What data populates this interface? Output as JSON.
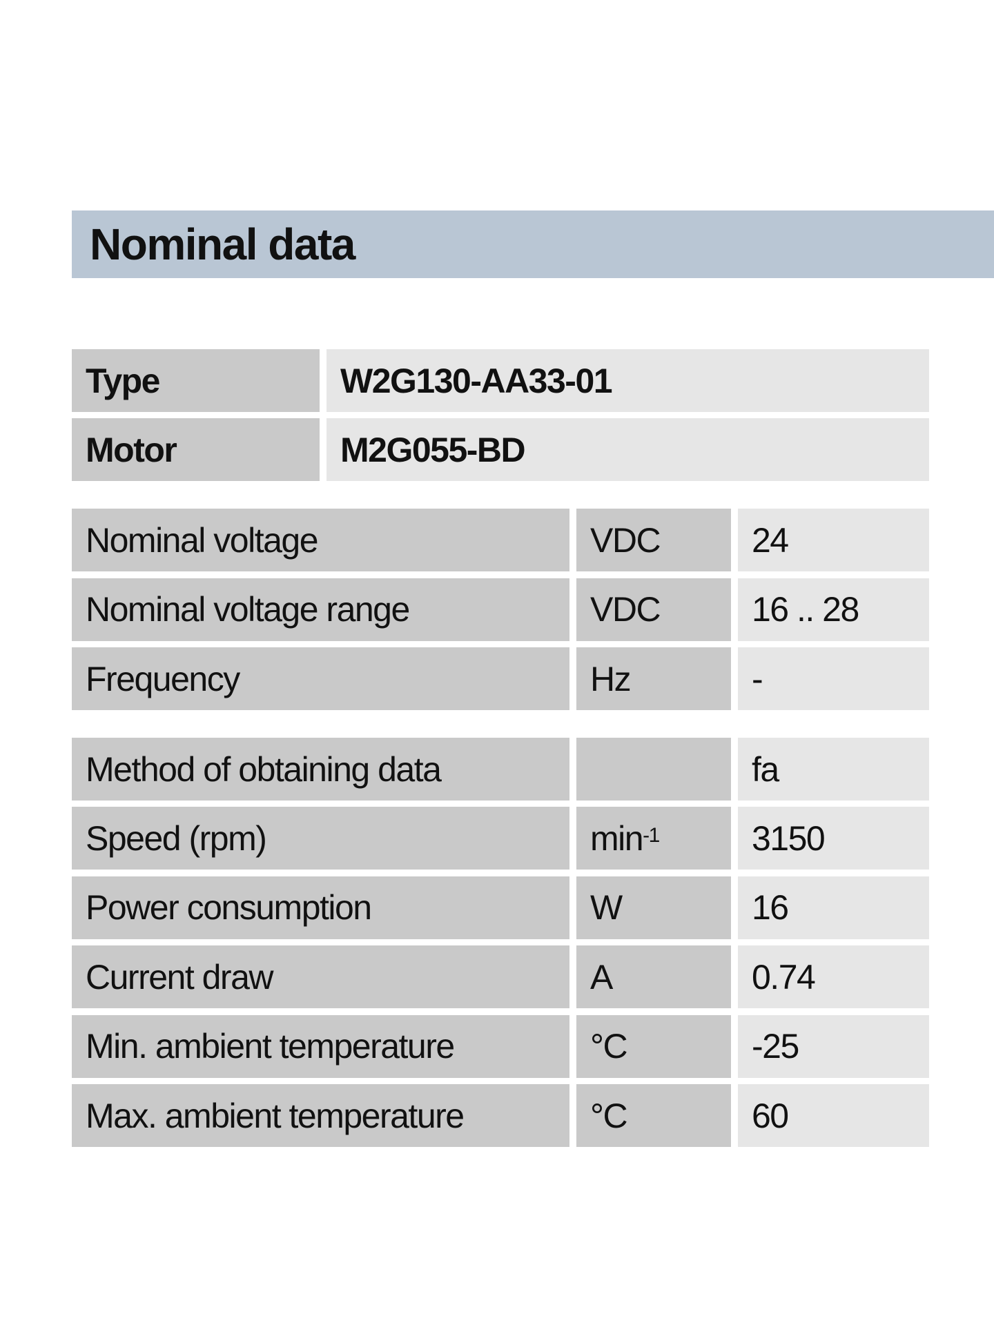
{
  "header": {
    "title": "Nominal data"
  },
  "identity": {
    "rows": [
      [
        "Type",
        "W2G130-AA33-01"
      ],
      [
        "Motor",
        "M2G055-BD"
      ]
    ]
  },
  "electrical": {
    "rows": [
      [
        "Nominal voltage",
        "VDC",
        24
      ],
      [
        "Nominal voltage range",
        "VDC",
        "16 .. 28"
      ],
      [
        "Frequency",
        "Hz",
        "-"
      ]
    ]
  },
  "performance": {
    "rows": [
      [
        "Method of obtaining data",
        null,
        "fa"
      ],
      [
        "Speed (rpm)",
        {
          "text": "min",
          "sup": "-1"
        },
        3150
      ],
      [
        "Power consumption",
        "W",
        16
      ],
      [
        "Current draw",
        "A",
        0.74
      ],
      [
        "Min. ambient temperature",
        "°C",
        -25
      ],
      [
        "Max. ambient temperature",
        "°C",
        60
      ]
    ]
  }
}
